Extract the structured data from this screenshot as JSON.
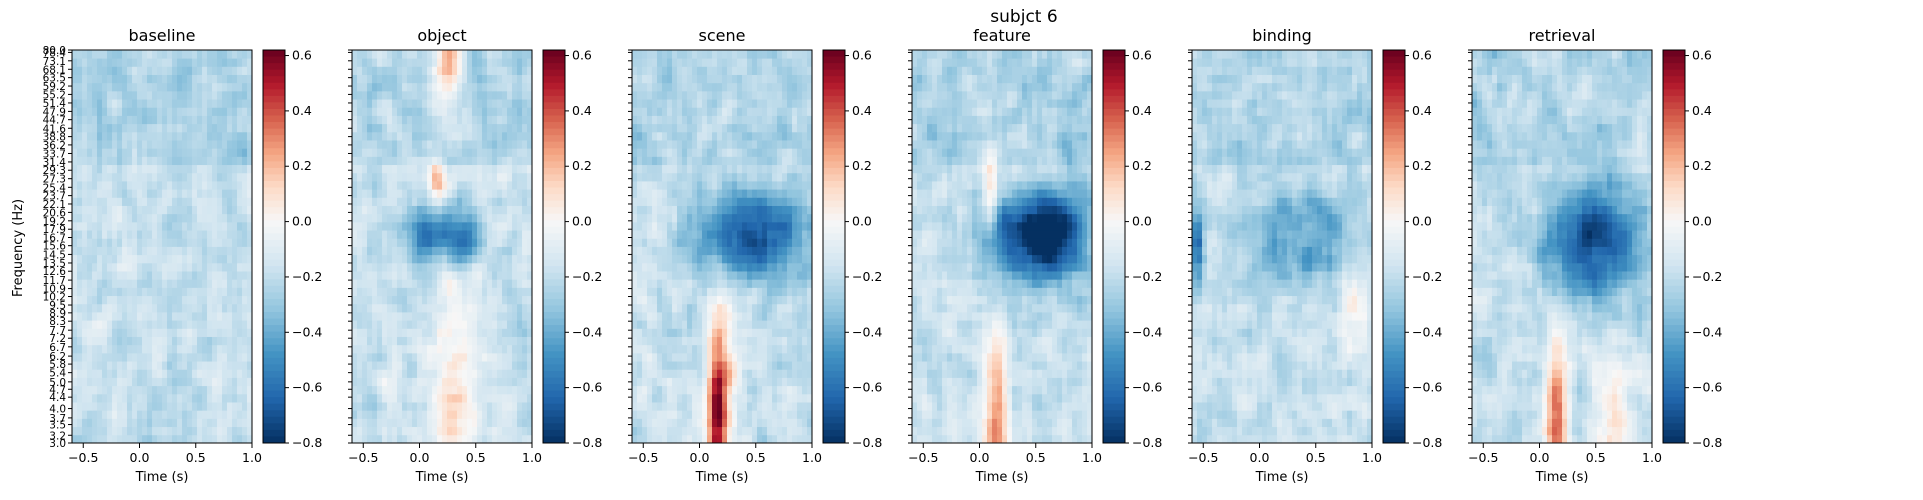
{
  "suptitle": "subjct 6",
  "ylabel": "Frequency (Hz)",
  "colors": {
    "scale": [
      "#053061",
      "#2166ac",
      "#4393c3",
      "#92c5de",
      "#d1e5f0",
      "#f7f7f7",
      "#fddbc7",
      "#f4a582",
      "#d6604d",
      "#b2182b",
      "#67001f"
    ]
  },
  "chart_data": {
    "type": "heatmap",
    "x_range": [
      -0.6,
      1.0
    ],
    "x_ticks": [
      -0.5,
      0.0,
      0.5,
      1.0
    ],
    "x_tick_labels": [
      "−0.5",
      "0.0",
      "0.5",
      "1.0"
    ],
    "xlabel": "Time (s)",
    "y_range": [
      3.0,
      80.0
    ],
    "y_ticks": [
      3.0,
      3.2,
      3.5,
      3.7,
      4.0,
      4.4,
      4.7,
      5.0,
      5.4,
      5.8,
      6.2,
      6.7,
      7.2,
      7.7,
      8.3,
      8.9,
      9.5,
      10.2,
      10.9,
      11.7,
      12.6,
      13.5,
      14.5,
      15.6,
      16.7,
      17.9,
      19.2,
      20.6,
      22.1,
      23.7,
      25.4,
      27.3,
      29.3,
      31.4,
      33.7,
      36.2,
      38.8,
      41.6,
      44.7,
      47.9,
      51.4,
      55.2,
      59.2,
      63.5,
      68.1,
      73.1,
      78.4,
      80.0
    ],
    "y_tick_labels": [
      "3.0",
      "3.2",
      "3.5",
      "3.7",
      "4.0",
      "4.4",
      "4.7",
      "5.0",
      "5.4",
      "5.8",
      "6.2",
      "6.7",
      "7.2",
      "7.7",
      "8.3",
      "8.9",
      "9.5",
      "10.2",
      "10.9",
      "11.7",
      "12.6",
      "13.5",
      "14.5",
      "15.6",
      "16.7",
      "17.9",
      "19.2",
      "20.6",
      "22.1",
      "23.7",
      "25.4",
      "27.3",
      "29.3",
      "31.4",
      "33.7",
      "36.2",
      "38.8",
      "41.6",
      "44.7",
      "47.9",
      "51.4",
      "55.2",
      "59.2",
      "63.5",
      "68.1",
      "73.1",
      "78.4",
      "80.0"
    ],
    "colorbar": {
      "range": [
        -0.8,
        0.62
      ],
      "ticks": [
        -0.8,
        -0.6,
        -0.4,
        -0.2,
        0.0,
        0.2,
        0.4,
        0.6
      ],
      "tick_labels": [
        "−0.8",
        "−0.6",
        "−0.4",
        "−0.2",
        "0.0",
        "0.2",
        "0.4",
        "0.6"
      ]
    },
    "panels": [
      {
        "title": "baseline",
        "features": []
      },
      {
        "title": "object",
        "features": [
          {
            "t": 0.25,
            "f": 70,
            "sf": 0.08,
            "sy": 0.07,
            "v": 0.45
          },
          {
            "t": 0.15,
            "f": 27,
            "sf": 0.05,
            "sy": 0.04,
            "v": 0.35
          },
          {
            "t": 0.3,
            "f": 5,
            "sf": 0.15,
            "sy": 0.22,
            "v": 0.25
          },
          {
            "t": 0.1,
            "f": 17,
            "sf": 0.15,
            "sy": 0.05,
            "v": -0.45
          },
          {
            "t": 0.4,
            "f": 17,
            "sf": 0.1,
            "sy": 0.05,
            "v": -0.4
          }
        ]
      },
      {
        "title": "scene",
        "features": [
          {
            "t": 0.15,
            "f": 3.6,
            "sf": 0.06,
            "sy": 0.12,
            "v": 0.62
          },
          {
            "t": 0.2,
            "f": 6,
            "sf": 0.1,
            "sy": 0.2,
            "v": 0.3
          },
          {
            "t": 0.45,
            "f": 17,
            "sf": 0.35,
            "sy": 0.08,
            "v": -0.55
          }
        ]
      },
      {
        "title": "feature",
        "features": [
          {
            "t": 0.15,
            "f": 3.7,
            "sf": 0.07,
            "sy": 0.15,
            "v": 0.5
          },
          {
            "t": 0.1,
            "f": 25,
            "sf": 0.05,
            "sy": 0.08,
            "v": 0.3
          },
          {
            "t": 0.55,
            "f": 17,
            "sf": 0.3,
            "sy": 0.08,
            "v": -0.75
          }
        ]
      },
      {
        "title": "binding",
        "features": [
          {
            "t": 0.45,
            "f": 17,
            "sf": 0.35,
            "sy": 0.1,
            "v": -0.25
          },
          {
            "t": -0.55,
            "f": 15,
            "sf": 0.04,
            "sy": 0.08,
            "v": -0.4
          },
          {
            "t": 0.85,
            "f": 10,
            "sf": 0.08,
            "sy": 0.08,
            "v": 0.2
          }
        ]
      },
      {
        "title": "retrieval",
        "features": [
          {
            "t": 0.15,
            "f": 4,
            "sf": 0.07,
            "sy": 0.14,
            "v": 0.5
          },
          {
            "t": 0.65,
            "f": 4,
            "sf": 0.1,
            "sy": 0.12,
            "v": 0.3
          },
          {
            "t": 0.5,
            "f": 16,
            "sf": 0.3,
            "sy": 0.1,
            "v": -0.55
          }
        ]
      }
    ]
  }
}
